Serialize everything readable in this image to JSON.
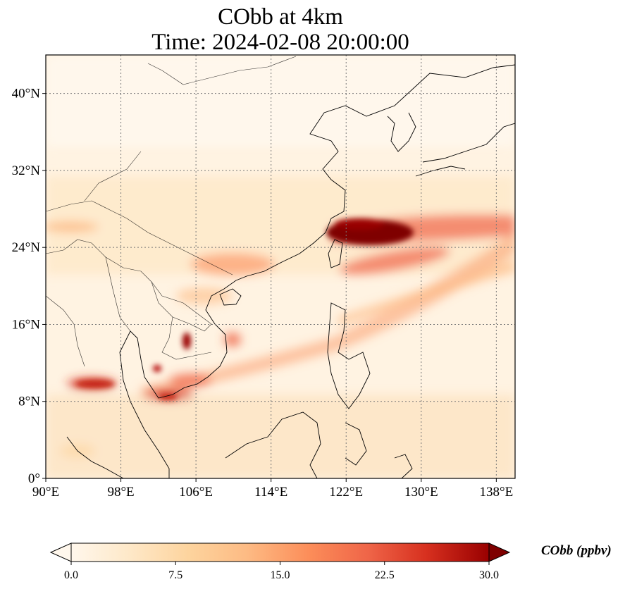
{
  "title": {
    "line1": "CObb at 4km",
    "line2": "Time: 2024-02-08 20:00:00"
  },
  "map": {
    "lon_range": [
      90,
      140
    ],
    "lat_range": [
      0,
      44
    ],
    "x_ticks": [
      {
        "lon": 90,
        "label": "90°E"
      },
      {
        "lon": 98,
        "label": "98°E"
      },
      {
        "lon": 106,
        "label": "106°E"
      },
      {
        "lon": 114,
        "label": "114°E"
      },
      {
        "lon": 122,
        "label": "122°E"
      },
      {
        "lon": 130,
        "label": "130°E"
      },
      {
        "lon": 138,
        "label": "138°E"
      }
    ],
    "y_ticks": [
      {
        "lat": 0,
        "label": "0°"
      },
      {
        "lat": 8,
        "label": "8°N"
      },
      {
        "lat": 16,
        "label": "16°N"
      },
      {
        "lat": 24,
        "label": "24°N"
      },
      {
        "lat": 32,
        "label": "32°N"
      },
      {
        "lat": 40,
        "label": "40°N"
      }
    ],
    "gridlines": true,
    "colormap": "OrRd",
    "colors": {
      "low": "#fff7ec",
      "mid": "#fdbb84",
      "high": "#7f0000",
      "grid": "#777777",
      "coast": "#000000"
    }
  },
  "colorbar": {
    "label": "CObb (ppbv)",
    "ticks": [
      {
        "value": 0,
        "label": "0.0"
      },
      {
        "value": 7.5,
        "label": "7.5"
      },
      {
        "value": 15,
        "label": "15.0"
      },
      {
        "value": 22.5,
        "label": "22.5"
      },
      {
        "value": 30,
        "label": "30.0"
      }
    ],
    "range": [
      0,
      30
    ],
    "extend": "both"
  }
}
